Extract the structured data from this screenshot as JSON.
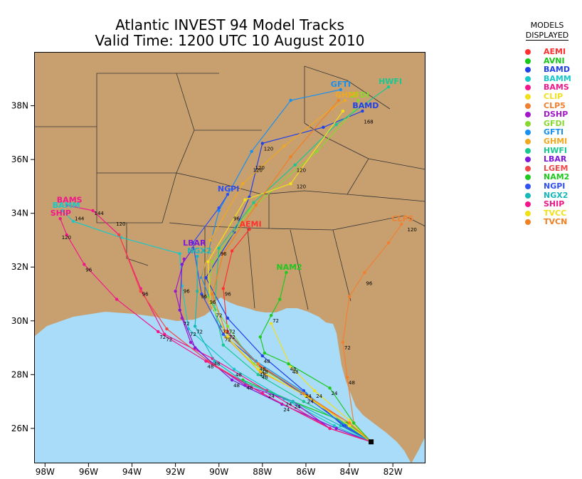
{
  "title": {
    "line1": "Atlantic INVEST 94 Model Tracks",
    "line2": "Valid Time: 1200 UTC 10 August 2010"
  },
  "legend": {
    "header_line1": "MODELS",
    "header_line2": "DISPLAYED",
    "items": [
      {
        "name": "AEMI",
        "color": "#ff3030"
      },
      {
        "name": "AVNI",
        "color": "#18c818"
      },
      {
        "name": "BAMD",
        "color": "#2040e8"
      },
      {
        "name": "BAMM",
        "color": "#18c8c8"
      },
      {
        "name": "BAMS",
        "color": "#f0188c"
      },
      {
        "name": "CLIP",
        "color": "#f0e020"
      },
      {
        "name": "CLP5",
        "color": "#f08030"
      },
      {
        "name": "DSHP",
        "color": "#a018c8"
      },
      {
        "name": "GFDI",
        "color": "#88d830"
      },
      {
        "name": "GFTI",
        "color": "#1890f0"
      },
      {
        "name": "GHMI",
        "color": "#f0a820"
      },
      {
        "name": "HWFI",
        "color": "#18c890"
      },
      {
        "name": "LBAR",
        "color": "#8018d8"
      },
      {
        "name": "LGEM",
        "color": "#f04848"
      },
      {
        "name": "NAM2",
        "color": "#20c820"
      },
      {
        "name": "NGPI",
        "color": "#3050f0"
      },
      {
        "name": "NGX2",
        "color": "#18b8b8"
      },
      {
        "name": "SHIP",
        "color": "#f01888"
      },
      {
        "name": "TVCC",
        "color": "#f0e018"
      },
      {
        "name": "TVCN",
        "color": "#f08020"
      }
    ]
  },
  "map": {
    "land_color": "#c8a070",
    "water_color": "#a8dcf8",
    "lon_range": [
      -98.5,
      -80.5
    ],
    "lat_range": [
      24.7,
      40.0
    ],
    "x_ticks": [
      "98W",
      "96W",
      "94W",
      "92W",
      "90W",
      "88W",
      "86W",
      "84W",
      "82W"
    ],
    "y_ticks": [
      "26N",
      "28N",
      "30N",
      "32N",
      "34N",
      "36N",
      "38N"
    ],
    "origin": {
      "lon": -83.0,
      "lat": 25.5
    }
  },
  "chart_data": {
    "type": "map-tracks",
    "tracks": [
      {
        "model": "AEMI",
        "label": "AEMI",
        "points": [
          [
            -83.0,
            25.5
          ],
          [
            -84.0,
            26.2
          ],
          [
            -86.0,
            27.2
          ],
          [
            -88.1,
            28.3
          ],
          [
            -89.6,
            29.6
          ],
          [
            -89.8,
            31.2
          ],
          [
            -89.4,
            32.6
          ],
          [
            -88.6,
            33.4
          ]
        ],
        "marks": [
          [
            "48",
            -88.1,
            28.3
          ],
          [
            "72",
            -89.6,
            29.6
          ],
          [
            "96",
            -89.8,
            31.2
          ]
        ]
      },
      {
        "model": "AVNI",
        "label": "",
        "points": [
          [
            -83.0,
            25.5
          ],
          [
            -84.1,
            26.2
          ],
          [
            -86.6,
            27.0
          ],
          [
            -88.9,
            27.8
          ]
        ],
        "marks": []
      },
      {
        "model": "BAMD",
        "label": "BAMD",
        "points": [
          [
            -83.0,
            25.5
          ],
          [
            -84.3,
            26.1
          ],
          [
            -86.1,
            27.4
          ],
          [
            -88.0,
            28.7
          ],
          [
            -89.6,
            30.1
          ],
          [
            -90.6,
            31.6
          ],
          [
            -89.3,
            33.3
          ],
          [
            -88.6,
            34.6
          ],
          [
            -88.0,
            36.6
          ],
          [
            -85.2,
            37.2
          ],
          [
            -83.4,
            37.8
          ]
        ],
        "marks": [
          [
            "24",
            -86.1,
            27.4
          ],
          [
            "48",
            -88.0,
            28.7
          ],
          [
            "120",
            -88.0,
            36.6
          ],
          [
            "168",
            -83.4,
            37.6
          ]
        ]
      },
      {
        "model": "BAMM",
        "label": "BAMM",
        "points": [
          [
            -83.0,
            25.5
          ],
          [
            -84.7,
            26.1
          ],
          [
            -87.0,
            27.1
          ],
          [
            -89.3,
            28.2
          ],
          [
            -91.4,
            29.7
          ],
          [
            -91.7,
            31.3
          ],
          [
            -91.8,
            32.5
          ],
          [
            -94.5,
            33.1
          ],
          [
            -96.7,
            33.7
          ],
          [
            -97.2,
            34.1
          ]
        ],
        "marks": [
          [
            "24",
            -87.0,
            27.1
          ],
          [
            "48",
            -89.3,
            28.2
          ],
          [
            "72",
            -91.4,
            29.7
          ],
          [
            "96",
            -91.7,
            31.3
          ],
          [
            "144",
            -96.7,
            34.0
          ]
        ]
      },
      {
        "model": "BAMS",
        "label": "BAMS",
        "points": [
          [
            -83.0,
            25.5
          ],
          [
            -84.9,
            26.0
          ],
          [
            -87.8,
            27.4
          ],
          [
            -90.3,
            28.6
          ],
          [
            -92.5,
            29.5
          ],
          [
            -93.6,
            31.2
          ],
          [
            -94.6,
            33.2
          ],
          [
            -95.8,
            34.1
          ],
          [
            -97.0,
            34.3
          ]
        ],
        "marks": [
          [
            "24",
            -87.8,
            27.4
          ],
          [
            "48",
            -90.3,
            28.6
          ],
          [
            "72",
            -92.5,
            29.5
          ],
          [
            "96",
            -93.6,
            31.2
          ],
          [
            "144",
            -95.8,
            34.2
          ],
          [
            "120",
            -94.8,
            33.8
          ]
        ]
      },
      {
        "model": "CLIP",
        "label": "",
        "points": [
          [
            -83.0,
            25.5
          ],
          [
            -84.0,
            26.3
          ],
          [
            -85.6,
            27.4
          ],
          [
            -86.7,
            28.3
          ],
          [
            -87.6,
            29.9
          ]
        ],
        "marks": [
          [
            "24",
            -85.6,
            27.4
          ],
          [
            "48",
            -86.7,
            28.3
          ]
        ]
      },
      {
        "model": "CLP5",
        "label": "CLP5",
        "points": [
          [
            -83.0,
            25.5
          ],
          [
            -83.8,
            26.2
          ],
          [
            -84.1,
            27.9
          ],
          [
            -84.3,
            29.2
          ],
          [
            -84.0,
            30.9
          ],
          [
            -83.3,
            31.8
          ],
          [
            -82.2,
            32.9
          ],
          [
            -81.6,
            33.6
          ]
        ],
        "marks": [
          [
            "48",
            -84.1,
            27.9
          ],
          [
            "72",
            -84.3,
            29.2
          ],
          [
            "96",
            -83.3,
            31.6
          ],
          [
            "120",
            -81.4,
            33.6
          ]
        ]
      },
      {
        "model": "DSHP",
        "label": "",
        "points": [
          [
            -83.0,
            25.5
          ],
          [
            -84.9,
            26.0
          ],
          [
            -86.6,
            27.0
          ],
          [
            -88.8,
            27.6
          ],
          [
            -90.3,
            28.4
          ],
          [
            -91.3,
            29.2
          ],
          [
            -91.7,
            30.1
          ],
          [
            -92.0,
            31.1
          ],
          [
            -91.6,
            32.3
          ]
        ],
        "marks": [
          [
            "72",
            -91.7,
            30.1
          ]
        ]
      },
      {
        "model": "GFDI",
        "label": "GFDI",
        "points": [
          [
            -83.0,
            25.5
          ],
          [
            -84.0,
            26.1
          ],
          [
            -86.1,
            27.3
          ],
          [
            -88.4,
            28.4
          ],
          [
            -89.6,
            29.8
          ],
          [
            -90.5,
            30.9
          ],
          [
            -90.3,
            32.2
          ],
          [
            -88.6,
            34.1
          ],
          [
            -85.5,
            36.3
          ],
          [
            -83.8,
            37.8
          ],
          [
            -83.6,
            38.2
          ]
        ],
        "marks": [
          [
            "72",
            -89.6,
            29.8
          ],
          [
            "96",
            -90.5,
            30.9
          ]
        ]
      },
      {
        "model": "GFTI",
        "label": "GFTI",
        "points": [
          [
            -83.0,
            25.5
          ],
          [
            -84.1,
            26.1
          ],
          [
            -86.0,
            27.3
          ],
          [
            -88.3,
            28.5
          ],
          [
            -89.9,
            29.8
          ],
          [
            -90.8,
            31.6
          ],
          [
            -90.0,
            34.1
          ],
          [
            -88.5,
            36.3
          ],
          [
            -86.7,
            38.2
          ],
          [
            -84.4,
            38.6
          ]
        ],
        "marks": [
          [
            "72",
            -89.9,
            29.8
          ]
        ]
      },
      {
        "model": "GHMI",
        "label": "GHMI",
        "points": [
          [
            -83.0,
            25.5
          ],
          [
            -84.0,
            26.1
          ],
          [
            -85.9,
            27.2
          ],
          [
            -88.1,
            28.1
          ],
          [
            -89.7,
            29.4
          ],
          [
            -90.9,
            31.1
          ],
          [
            -90.4,
            33.0
          ],
          [
            -88.9,
            35.1
          ],
          [
            -87.0,
            36.5
          ],
          [
            -84.8,
            37.9
          ],
          [
            -84.2,
            38.2
          ]
        ],
        "marks": [
          [
            "48",
            -88.1,
            28.1
          ],
          [
            "96",
            -90.9,
            31.1
          ],
          [
            "120",
            -88.5,
            35.8
          ]
        ]
      },
      {
        "model": "HWFI",
        "label": "HWFI",
        "points": [
          [
            -83.0,
            25.5
          ],
          [
            -84.3,
            26.2
          ],
          [
            -86.1,
            27.0
          ],
          [
            -88.2,
            28.0
          ],
          [
            -89.8,
            29.1
          ],
          [
            -90.2,
            30.4
          ],
          [
            -90.0,
            32.7
          ],
          [
            -88.4,
            34.4
          ],
          [
            -86.5,
            35.8
          ],
          [
            -84.6,
            37.3
          ],
          [
            -82.2,
            38.7
          ]
        ],
        "marks": [
          [
            "72",
            -90.2,
            30.4
          ],
          [
            "96",
            -90.0,
            32.7
          ],
          [
            "120",
            -86.5,
            35.8
          ]
        ]
      },
      {
        "model": "LBAR",
        "label": "LBAR",
        "points": [
          [
            -83.0,
            25.5
          ],
          [
            -84.6,
            26.0
          ],
          [
            -87.1,
            26.9
          ],
          [
            -89.4,
            27.8
          ],
          [
            -91.1,
            29.0
          ],
          [
            -91.8,
            30.4
          ],
          [
            -91.7,
            32.1
          ],
          [
            -91.2,
            32.7
          ]
        ],
        "marks": [
          [
            "24",
            -87.1,
            26.9
          ],
          [
            "48",
            -89.4,
            27.8
          ]
        ]
      },
      {
        "model": "LGEM",
        "label": "",
        "points": [
          [
            -83.0,
            25.5
          ],
          [
            -84.9,
            26.0
          ],
          [
            -88.0,
            27.3
          ],
          [
            -90.5,
            28.5
          ],
          [
            -92.4,
            29.7
          ],
          [
            -93.6,
            31.1
          ],
          [
            -94.6,
            33.2
          ]
        ],
        "marks": []
      },
      {
        "model": "NAM2",
        "label": "NAM2",
        "points": [
          [
            -83.0,
            25.5
          ],
          [
            -83.8,
            26.2
          ],
          [
            -84.9,
            27.5
          ],
          [
            -86.8,
            28.4
          ],
          [
            -87.9,
            28.8
          ],
          [
            -88.1,
            29.4
          ],
          [
            -87.6,
            30.2
          ],
          [
            -87.2,
            30.8
          ],
          [
            -86.9,
            31.8
          ]
        ],
        "marks": [
          [
            "24",
            -84.9,
            27.5
          ],
          [
            "48",
            -86.8,
            28.4
          ],
          [
            "72",
            -87.6,
            30.2
          ]
        ]
      },
      {
        "model": "NGPI",
        "label": "NGPI",
        "points": [
          [
            -83.0,
            25.5
          ],
          [
            -84.2,
            26.1
          ],
          [
            -86.2,
            27.3
          ],
          [
            -88.2,
            28.4
          ],
          [
            -89.8,
            29.5
          ],
          [
            -90.8,
            31.0
          ],
          [
            -91.2,
            32.9
          ],
          [
            -90.0,
            34.2
          ],
          [
            -89.6,
            34.7
          ]
        ],
        "marks": [
          [
            "48",
            -88.2,
            28.4
          ],
          [
            "72",
            -89.8,
            29.5
          ],
          [
            "96",
            -89.4,
            34.0
          ]
        ]
      },
      {
        "model": "NGX2",
        "label": "NGX2",
        "points": [
          [
            -83.0,
            25.5
          ],
          [
            -84.4,
            26.1
          ],
          [
            -86.6,
            27.0
          ],
          [
            -88.8,
            27.7
          ],
          [
            -90.2,
            28.5
          ],
          [
            -91.1,
            29.8
          ],
          [
            -91.0,
            31.1
          ],
          [
            -91.0,
            32.4
          ]
        ],
        "marks": [
          [
            "24",
            -86.6,
            27.0
          ],
          [
            "48",
            -88.8,
            27.7
          ],
          [
            "72",
            -91.1,
            29.8
          ]
        ]
      },
      {
        "model": "SHIP",
        "label": "SHIP",
        "points": [
          [
            -83.0,
            25.5
          ],
          [
            -84.9,
            26.0
          ],
          [
            -88.0,
            27.3
          ],
          [
            -90.6,
            28.5
          ],
          [
            -92.8,
            29.6
          ],
          [
            -94.7,
            30.8
          ],
          [
            -96.2,
            32.1
          ],
          [
            -97.0,
            33.2
          ],
          [
            -97.3,
            33.8
          ]
        ],
        "marks": [
          [
            "48",
            -90.6,
            28.5
          ],
          [
            "72",
            -92.8,
            29.6
          ],
          [
            "96",
            -96.2,
            32.1
          ],
          [
            "120",
            -97.3,
            33.3
          ]
        ]
      },
      {
        "model": "TVCC",
        "label": "",
        "points": [
          [
            -83.0,
            25.5
          ],
          [
            -84.0,
            26.1
          ],
          [
            -86.0,
            27.2
          ],
          [
            -88.2,
            28.2
          ],
          [
            -89.6,
            29.4
          ],
          [
            -90.4,
            30.7
          ],
          [
            -90.5,
            32.2
          ],
          [
            -88.8,
            34.5
          ],
          [
            -86.7,
            35.1
          ],
          [
            -84.3,
            37.8
          ]
        ],
        "marks": [
          [
            "24",
            -86.0,
            27.2
          ],
          [
            "48",
            -88.2,
            28.2
          ],
          [
            "120",
            -86.5,
            35.2
          ]
        ]
      },
      {
        "model": "TVCN",
        "label": "",
        "points": [
          [
            -83.0,
            25.5
          ],
          [
            -84.0,
            26.2
          ],
          [
            -86.1,
            27.3
          ],
          [
            -88.2,
            28.4
          ],
          [
            -89.7,
            29.6
          ],
          [
            -90.3,
            31.0
          ],
          [
            -89.8,
            32.5
          ],
          [
            -88.3,
            34.3
          ],
          [
            -86.7,
            36.1
          ],
          [
            -84.5,
            38.2
          ]
        ],
        "marks": [
          [
            "120",
            -88.4,
            35.9
          ]
        ]
      }
    ]
  }
}
